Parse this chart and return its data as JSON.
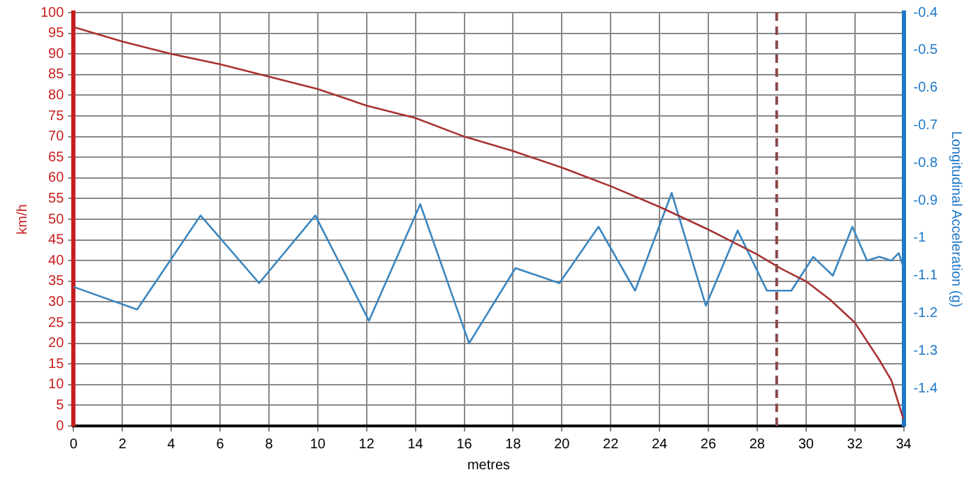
{
  "chart_data": {
    "type": "line",
    "xlabel": "metres",
    "ylabel": "km/h",
    "y2label": "Longitudinal Acceleration (g)",
    "xlim": [
      0,
      34
    ],
    "xticks": [
      0,
      2,
      4,
      6,
      8,
      10,
      12,
      14,
      16,
      18,
      20,
      22,
      24,
      26,
      28,
      30,
      32,
      34
    ],
    "ylim": [
      0,
      100
    ],
    "yticks": [
      0,
      5,
      10,
      15,
      20,
      25,
      30,
      35,
      40,
      45,
      50,
      55,
      60,
      65,
      70,
      75,
      80,
      85,
      90,
      95,
      100
    ],
    "y2lim": [
      -1.5,
      -0.4
    ],
    "y2ticks": [
      -1.4,
      -1.3,
      -1.2,
      -1.1,
      -1,
      -0.9,
      -0.8,
      -0.7,
      -0.6,
      -0.5,
      -0.4
    ],
    "grid": true,
    "legend": false,
    "marker": "none",
    "line_style": "solid",
    "series": [
      {
        "color": "#a83232",
        "x": [
          0,
          2,
          4,
          6,
          8,
          10,
          12,
          14,
          16,
          18,
          20,
          22,
          24,
          26,
          28,
          29,
          30,
          31,
          32,
          33,
          33.5,
          34
        ],
        "values": [
          96.5,
          93,
          90,
          87.5,
          84.5,
          81.5,
          77.5,
          74.5,
          70,
          66.5,
          62.5,
          58,
          53,
          47.5,
          41.5,
          38,
          35,
          30.5,
          25,
          16,
          11,
          1.5
        ]
      },
      {
        "color": "#3a86c0",
        "axis": "y2",
        "x": [
          0,
          2.6,
          5.2,
          7.6,
          9.9,
          12.1,
          14.2,
          16.2,
          18.1,
          19.9,
          21.5,
          23,
          24.5,
          25.9,
          27.2,
          28.4,
          29.4,
          30.3,
          31.1,
          31.9,
          32.5,
          33,
          33.5,
          33.8,
          34
        ],
        "values": [
          -1.13,
          -1.19,
          -0.94,
          -1.12,
          -0.94,
          -1.22,
          -0.91,
          -1.28,
          -1.08,
          -1.12,
          -0.97,
          -1.14,
          -0.88,
          -1.18,
          -0.98,
          -1.14,
          -1.14,
          -1.05,
          -1.1,
          -0.97,
          -1.06,
          -1.05,
          -1.06,
          -1.04,
          -1.08
        ]
      }
    ],
    "ref_lines": [
      {
        "axis": "x",
        "value": 28.8,
        "color": "#8b4a4a",
        "line_style": "dashed"
      }
    ]
  }
}
